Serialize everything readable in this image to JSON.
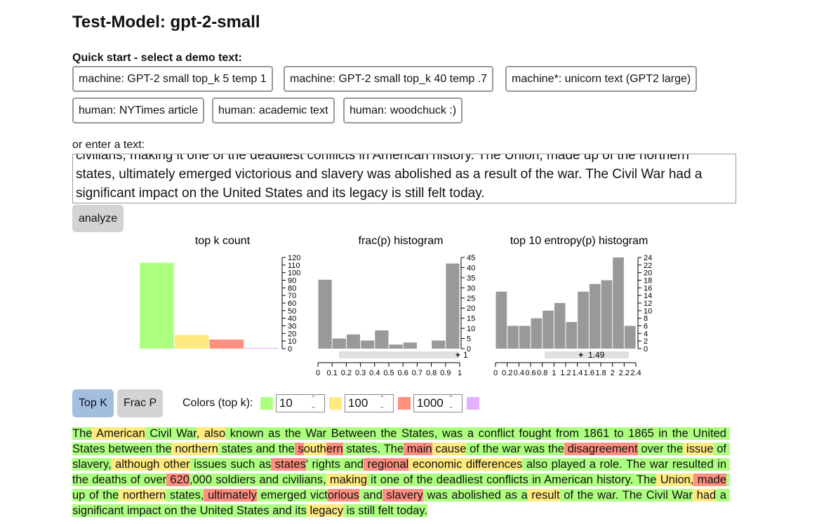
{
  "header": {
    "title": "Test-Model: gpt-2-small"
  },
  "quick_start": {
    "label": "Quick start - select a demo text:",
    "buttons": [
      "machine: GPT-2 small top_k 5 temp 1",
      "machine: GPT-2 small top_k 40 temp .7",
      "machine*: unicorn text (GPT2 large)",
      "human: NYTimes article",
      "human: academic text",
      "human: woodchuck :)"
    ]
  },
  "input": {
    "label": "or enter a text:",
    "text": "The American Civil War, also known as the War Between the States, was a conflict fought from 1861 to 1865 in the United States between the northern states and the southern states. The main cause of the war was the disagreement over the issue of slavery, although other issues such as states' rights and regional economic differences also played a role. The war resulted in the deaths of over 620,000 soldiers and civilians, making it one of the deadliest conflicts in American history. The Union, made up of the northern states, ultimately emerged victorious and slavery was abolished as a result of the war. The Civil War had a significant impact on the United States and its legacy is still felt today.",
    "button": "analyze"
  },
  "charts": [
    {
      "type": "bar",
      "title": "top k count",
      "values": [
        113,
        18,
        12,
        1
      ],
      "colors": [
        "#adff80",
        "#ffea80",
        "#ff9080",
        "#e5b0ff"
      ],
      "ylim": [
        0,
        120
      ],
      "yticks": [
        0,
        10,
        20,
        30,
        40,
        50,
        60,
        70,
        80,
        90,
        100,
        110,
        120
      ]
    },
    {
      "type": "histogram",
      "title": "frac(p) histogram",
      "bins": [
        0,
        0.1,
        0.2,
        0.3,
        0.4,
        0.5,
        0.6,
        0.7,
        0.8,
        0.9,
        1
      ],
      "values": [
        34,
        5,
        7,
        4,
        9,
        2,
        3,
        0,
        4,
        42
      ],
      "color": "#999999",
      "xlim": [
        0,
        1
      ],
      "xticks": [
        0,
        0.1,
        0.2,
        0.3,
        0.4,
        0.5,
        0.6,
        0.7,
        0.8,
        0.9,
        1
      ],
      "ylim": [
        0,
        45
      ],
      "yticks": [
        0,
        5,
        10,
        15,
        20,
        25,
        30,
        35,
        40,
        45
      ],
      "slider": 1
    },
    {
      "type": "histogram",
      "title": "top 10 entropy(p) histogram",
      "bins": [
        0,
        0.2,
        0.4,
        0.6,
        0.8,
        1,
        1.2,
        1.4,
        1.6,
        1.8,
        2,
        2.2,
        2.4
      ],
      "values": [
        15,
        6,
        6,
        8,
        10,
        12,
        7,
        15,
        17,
        18,
        24,
        6
      ],
      "color": "#999999",
      "xlim": [
        0,
        2.4
      ],
      "xticks": [
        0,
        0.2,
        0.4,
        0.6,
        0.8,
        1,
        1.2,
        1.4,
        1.6,
        1.8,
        2,
        2.2,
        2.4
      ],
      "ylim": [
        0,
        24
      ],
      "yticks": [
        0,
        2,
        4,
        6,
        8,
        10,
        12,
        14,
        16,
        18,
        20,
        22,
        24
      ],
      "slider": 1.49
    }
  ],
  "modes": [
    "Top K",
    "Frac P"
  ],
  "colors": {
    "label": "Colors (top k):",
    "swatches": [
      "#adff80",
      "#ffea80",
      "#ff9080",
      "#e5b0ff"
    ],
    "thresholds": [
      10,
      100,
      1000
    ]
  },
  "tokens": [
    [
      "The",
      0
    ],
    [
      " American",
      1
    ],
    [
      " Civil War",
      0
    ],
    [
      ",",
      1
    ],
    [
      " also",
      1
    ],
    [
      " known as the War Between the States, was a conflict fought from 1861 to 1865 in the United States between the",
      0
    ],
    [
      " northern",
      1
    ],
    [
      " states and the",
      0
    ],
    [
      " s",
      2
    ],
    [
      "outh",
      1
    ],
    [
      "ern",
      2
    ],
    [
      " states. The",
      0
    ],
    [
      " main",
      2
    ],
    [
      " cause",
      1
    ],
    [
      " of the war was the",
      0
    ],
    [
      " disagreement",
      2
    ],
    [
      " over the",
      0
    ],
    [
      " issue",
      1
    ],
    [
      " of slavery,",
      0
    ],
    [
      " although",
      1
    ],
    [
      " other",
      1
    ],
    [
      " issues such as",
      0
    ],
    [
      " states",
      2
    ],
    [
      "' rights and",
      0
    ],
    [
      " regional",
      2
    ],
    [
      " economic differences",
      1
    ],
    [
      " also played a role. The war resulted in the deaths of over",
      0
    ],
    [
      " 620",
      2
    ],
    [
      ",000 soldiers and civilians,",
      0
    ],
    [
      " making",
      1
    ],
    [
      " it one of the deadliest conflicts in American history. The",
      0
    ],
    [
      " Union",
      1
    ],
    [
      ",",
      1
    ],
    [
      " made",
      2
    ],
    [
      " up of the",
      0
    ],
    [
      " northern",
      1
    ],
    [
      " states,",
      0
    ],
    [
      " ultimately",
      2
    ],
    [
      " emerged vict",
      0
    ],
    [
      "orious",
      2
    ],
    [
      " and",
      0
    ],
    [
      " slavery",
      2
    ],
    [
      " was abolished as a",
      0
    ],
    [
      " result",
      1
    ],
    [
      " of the war. The Civil War",
      0
    ],
    [
      " had",
      1
    ],
    [
      " a significant impact on the United States and its",
      0
    ],
    [
      " legacy",
      1
    ],
    [
      " is still felt today.",
      0
    ]
  ]
}
